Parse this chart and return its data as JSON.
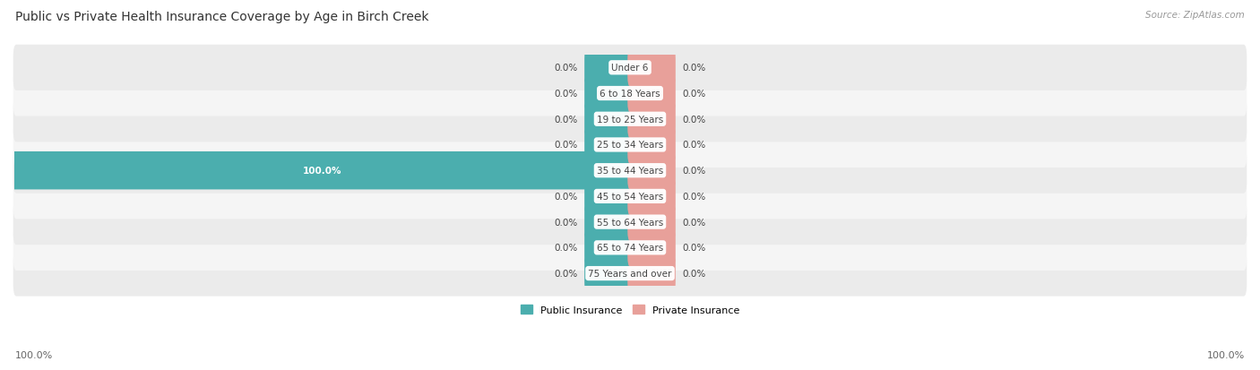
{
  "title": "Public vs Private Health Insurance Coverage by Age in Birch Creek",
  "source": "Source: ZipAtlas.com",
  "age_groups": [
    "Under 6",
    "6 to 18 Years",
    "19 to 25 Years",
    "25 to 34 Years",
    "35 to 44 Years",
    "45 to 54 Years",
    "55 to 64 Years",
    "65 to 74 Years",
    "75 Years and over"
  ],
  "public_values": [
    0.0,
    0.0,
    0.0,
    0.0,
    100.0,
    0.0,
    0.0,
    0.0,
    0.0
  ],
  "private_values": [
    0.0,
    0.0,
    0.0,
    0.0,
    0.0,
    0.0,
    0.0,
    0.0,
    0.0
  ],
  "public_color": "#4BAEAE",
  "private_color": "#E8A09A",
  "row_bg_even": "#EBEBEB",
  "row_bg_odd": "#F5F5F5",
  "label_color": "#444444",
  "center_label_color": "#444444",
  "title_color": "#333333",
  "source_color": "#999999",
  "axis_label_color": "#666666",
  "max_value": 100.0,
  "stub_size": 7.0,
  "legend_public": "Public Insurance",
  "legend_private": "Private Insurance",
  "bottom_left_label": "100.0%",
  "bottom_right_label": "100.0%"
}
